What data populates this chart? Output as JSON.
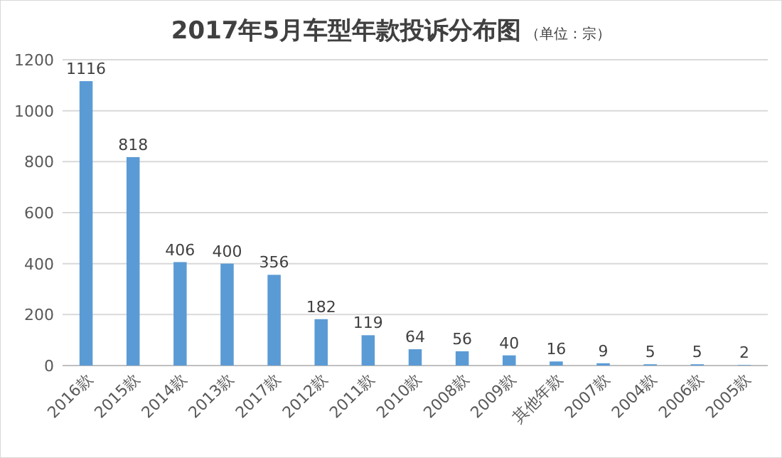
{
  "chart_data": {
    "type": "bar",
    "title": "2017年5月车型年款投诉分布图",
    "subtitle": "（单位：宗）",
    "categories": [
      "2016款",
      "2015款",
      "2014款",
      "2013款",
      "2017款",
      "2012款",
      "2011款",
      "2010款",
      "2008款",
      "2009款",
      "其他年款",
      "2007款",
      "2004款",
      "2006款",
      "2005款"
    ],
    "values": [
      1116,
      818,
      406,
      400,
      356,
      182,
      119,
      64,
      56,
      40,
      16,
      9,
      5,
      5,
      2
    ],
    "color": "#5b9bd5",
    "ylim": [
      0,
      1200
    ],
    "yticks": [
      0,
      200,
      400,
      600,
      800,
      1000,
      1200
    ],
    "grid": "y",
    "data_labels": true
  }
}
